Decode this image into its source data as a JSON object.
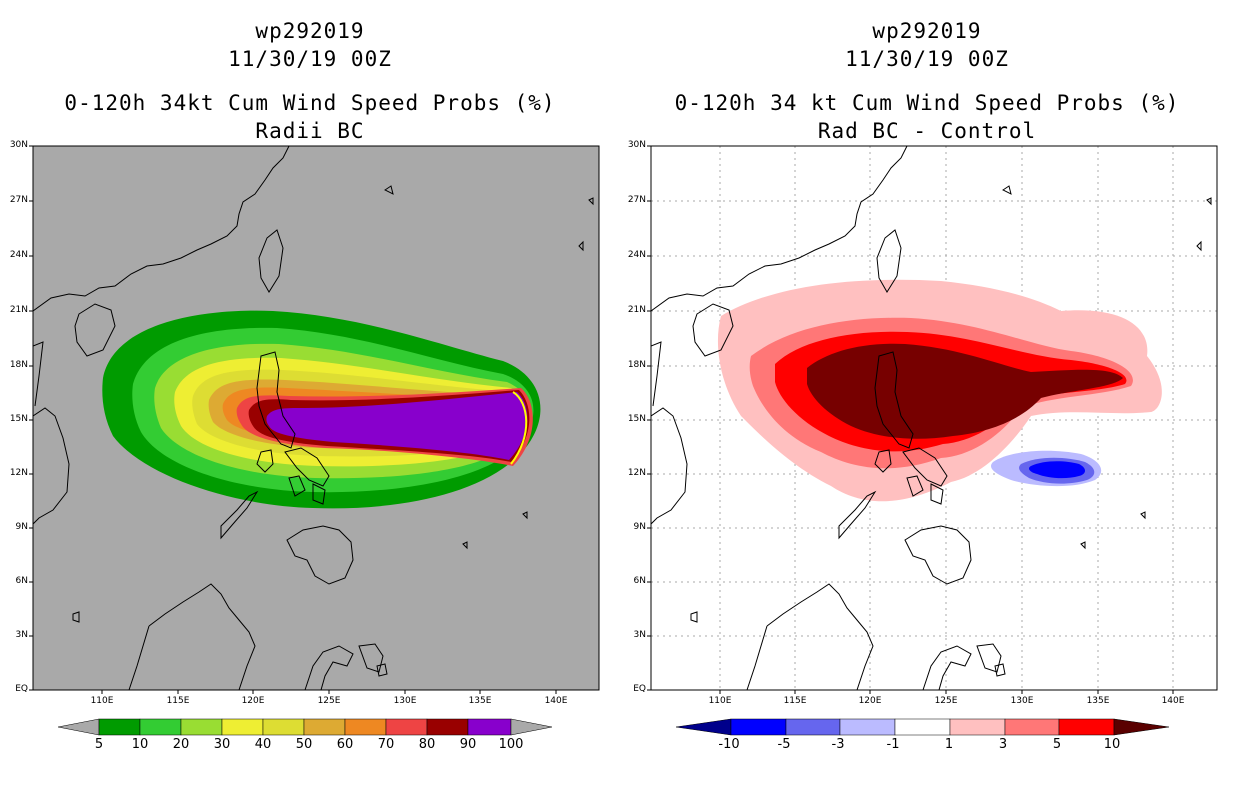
{
  "left": {
    "title_line1": "wp292019",
    "title_line2": "11/30/19 00Z",
    "title_line3": "0-120h 34kt Cum Wind Speed Probs (%)",
    "title_line4": "Radii BC",
    "background_color": "#a9a9a9",
    "colorbar": {
      "labels": [
        "5",
        "10",
        "20",
        "30",
        "40",
        "50",
        "60",
        "70",
        "80",
        "90",
        "100"
      ],
      "colors": [
        "#009b00",
        "#33cc33",
        "#99dd33",
        "#eeee33",
        "#dddd33",
        "#ddaa33",
        "#ee8822",
        "#ee4444",
        "#990000",
        "#8800cc"
      ]
    }
  },
  "right": {
    "title_line1": "wp292019",
    "title_line2": "11/30/19 00Z",
    "title_line3": "0-120h 34 kt Cum Wind Speed Probs (%)",
    "title_line4": "Rad BC - Control",
    "background_color": "#ffffff",
    "colorbar": {
      "labels": [
        "-10",
        "-5",
        "-3",
        "-1",
        "1",
        "3",
        "5",
        "10"
      ],
      "colors": [
        "#0000ff",
        "#6666ee",
        "#bbbbff",
        "#ffffff",
        "#ffc0c0",
        "#ff7777",
        "#ff0000",
        "#770000"
      ],
      "end_low_color": "#00008b",
      "end_high_color": "#5a0000"
    }
  },
  "lat_labels": [
    "30N",
    "27N",
    "24N",
    "21N",
    "18N",
    "15N",
    "12N",
    "9N",
    "6N",
    "3N",
    "EQ"
  ],
  "lon_labels": [
    "110E",
    "115E",
    "120E",
    "125E",
    "130E",
    "135E",
    "140E"
  ]
}
